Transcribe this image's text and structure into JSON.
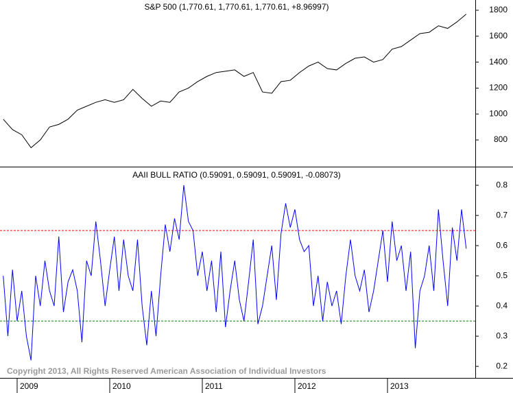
{
  "chart_data": [
    {
      "type": "line",
      "title": "S&P 500 (1,770.61, 1,770.61, 1,770.61, +8.96997)",
      "color": "#000000",
      "x": [
        2008.85,
        2008.95,
        2009.05,
        2009.15,
        2009.25,
        2009.35,
        2009.45,
        2009.55,
        2009.65,
        2009.75,
        2009.85,
        2009.95,
        2010.05,
        2010.15,
        2010.25,
        2010.35,
        2010.45,
        2010.55,
        2010.65,
        2010.75,
        2010.85,
        2010.95,
        2011.05,
        2011.15,
        2011.25,
        2011.35,
        2011.45,
        2011.55,
        2011.65,
        2011.75,
        2011.85,
        2011.95,
        2012.05,
        2012.15,
        2012.25,
        2012.35,
        2012.45,
        2012.55,
        2012.65,
        2012.75,
        2012.85,
        2012.95,
        2013.05,
        2013.15,
        2013.25,
        2013.35,
        2013.45,
        2013.55,
        2013.65,
        2013.75,
        2013.85
      ],
      "values": [
        960,
        880,
        840,
        740,
        800,
        900,
        920,
        960,
        1030,
        1060,
        1090,
        1110,
        1090,
        1110,
        1190,
        1120,
        1060,
        1100,
        1090,
        1170,
        1200,
        1250,
        1290,
        1320,
        1330,
        1340,
        1290,
        1320,
        1170,
        1160,
        1250,
        1260,
        1320,
        1370,
        1400,
        1350,
        1340,
        1390,
        1430,
        1440,
        1400,
        1420,
        1500,
        1520,
        1570,
        1620,
        1630,
        1680,
        1660,
        1710,
        1770
      ],
      "xlim": [
        2008.815,
        2013.948
      ],
      "ylim": [
        594,
        1879
      ],
      "yticks": [
        800,
        1000,
        1200,
        1400,
        1600,
        1800
      ]
    },
    {
      "type": "line",
      "title": "AAII BULL RATIO (0.59091, 0.59091, 0.59091, -0.08073)",
      "color": "#0000ff",
      "annotation": "Copyright 2013, All Rights Reserved  American Association of Individual Investors",
      "x": [
        2008.85,
        2008.9,
        2008.95,
        2009.0,
        2009.05,
        2009.1,
        2009.15,
        2009.2,
        2009.25,
        2009.3,
        2009.35,
        2009.4,
        2009.45,
        2009.5,
        2009.55,
        2009.6,
        2009.65,
        2009.7,
        2009.75,
        2009.8,
        2009.85,
        2009.9,
        2009.95,
        2010.0,
        2010.05,
        2010.1,
        2010.15,
        2010.2,
        2010.25,
        2010.3,
        2010.35,
        2010.4,
        2010.45,
        2010.5,
        2010.55,
        2010.6,
        2010.65,
        2010.7,
        2010.75,
        2010.8,
        2010.85,
        2010.9,
        2010.95,
        2011.0,
        2011.05,
        2011.1,
        2011.15,
        2011.2,
        2011.25,
        2011.3,
        2011.35,
        2011.4,
        2011.45,
        2011.5,
        2011.55,
        2011.6,
        2011.65,
        2011.7,
        2011.75,
        2011.8,
        2011.85,
        2011.9,
        2011.95,
        2012.0,
        2012.05,
        2012.1,
        2012.15,
        2012.2,
        2012.25,
        2012.3,
        2012.35,
        2012.4,
        2012.45,
        2012.5,
        2012.55,
        2012.6,
        2012.65,
        2012.7,
        2012.75,
        2012.8,
        2012.85,
        2012.9,
        2012.95,
        2013.0,
        2013.05,
        2013.1,
        2013.15,
        2013.2,
        2013.25,
        2013.3,
        2013.35,
        2013.4,
        2013.45,
        2013.5,
        2013.55,
        2013.6,
        2013.65,
        2013.7,
        2013.75,
        2013.8,
        2013.85
      ],
      "values": [
        0.5,
        0.3,
        0.52,
        0.35,
        0.45,
        0.3,
        0.22,
        0.5,
        0.4,
        0.55,
        0.45,
        0.4,
        0.63,
        0.38,
        0.48,
        0.52,
        0.45,
        0.28,
        0.55,
        0.5,
        0.68,
        0.55,
        0.4,
        0.52,
        0.63,
        0.45,
        0.62,
        0.5,
        0.45,
        0.62,
        0.4,
        0.27,
        0.45,
        0.3,
        0.5,
        0.67,
        0.58,
        0.69,
        0.62,
        0.8,
        0.68,
        0.65,
        0.5,
        0.58,
        0.45,
        0.55,
        0.38,
        0.58,
        0.33,
        0.45,
        0.55,
        0.42,
        0.35,
        0.48,
        0.62,
        0.34,
        0.4,
        0.5,
        0.6,
        0.42,
        0.64,
        0.74,
        0.66,
        0.72,
        0.62,
        0.58,
        0.6,
        0.4,
        0.5,
        0.35,
        0.48,
        0.4,
        0.45,
        0.34,
        0.5,
        0.62,
        0.5,
        0.45,
        0.52,
        0.38,
        0.45,
        0.55,
        0.65,
        0.48,
        0.68,
        0.55,
        0.6,
        0.45,
        0.58,
        0.26,
        0.45,
        0.5,
        0.6,
        0.45,
        0.72,
        0.55,
        0.4,
        0.66,
        0.55,
        0.72,
        0.59
      ],
      "hlines": [
        {
          "value": 0.65,
          "color": "#ff0000"
        },
        {
          "value": 0.35,
          "color": "#008000"
        }
      ],
      "xlim": [
        2008.815,
        2013.948
      ],
      "xticks": [
        2009,
        2010,
        2011,
        2012,
        2013
      ],
      "ylim": [
        0.164,
        0.857
      ],
      "yticks": [
        0.2,
        0.3,
        0.4,
        0.5,
        0.6,
        0.7,
        0.8
      ]
    }
  ]
}
